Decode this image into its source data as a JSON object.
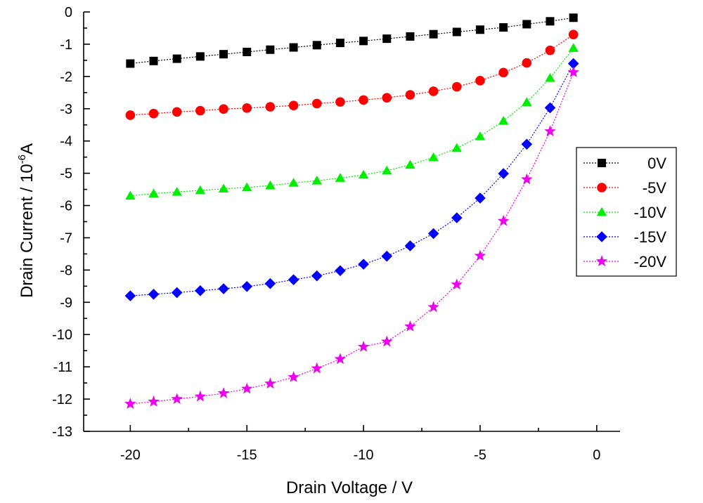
{
  "chart_data": {
    "type": "line",
    "xlabel": "Drain Voltage / V",
    "ylabel_main": "Drain Current / 10",
    "ylabel_exp": "-6",
    "ylabel_unit": "A",
    "xlim": [
      -22,
      1
    ],
    "ylim": [
      -13,
      0
    ],
    "xticks": [
      -20,
      -15,
      -10,
      -5,
      0
    ],
    "yticks": [
      0,
      -1,
      -2,
      -3,
      -4,
      -5,
      -6,
      -7,
      -8,
      -9,
      -10,
      -11,
      -12,
      -13
    ],
    "x": [
      -20,
      -19,
      -18,
      -17,
      -16,
      -15,
      -14,
      -13,
      -12,
      -11,
      -10,
      -9,
      -8,
      -7,
      -6,
      -5,
      -4,
      -3,
      -2,
      -1
    ],
    "legend_position": "right",
    "grid": false,
    "series": [
      {
        "name": "0V",
        "marker": "square",
        "color": "#000000",
        "values": [
          -1.6,
          -1.52,
          -1.45,
          -1.38,
          -1.31,
          -1.24,
          -1.17,
          -1.1,
          -1.03,
          -0.96,
          -0.9,
          -0.83,
          -0.76,
          -0.69,
          -0.62,
          -0.55,
          -0.48,
          -0.38,
          -0.29,
          -0.18
        ]
      },
      {
        "name": "-5V",
        "marker": "circle",
        "color": "#ff0000",
        "values": [
          -3.2,
          -3.15,
          -3.1,
          -3.06,
          -3.01,
          -2.98,
          -2.94,
          -2.9,
          -2.84,
          -2.79,
          -2.73,
          -2.66,
          -2.57,
          -2.46,
          -2.32,
          -2.13,
          -1.88,
          -1.58,
          -1.19,
          -0.7
        ]
      },
      {
        "name": "-10V",
        "marker": "triangle",
        "color": "#00ee00",
        "values": [
          -5.7,
          -5.63,
          -5.58,
          -5.53,
          -5.48,
          -5.44,
          -5.38,
          -5.3,
          -5.23,
          -5.15,
          -5.05,
          -4.92,
          -4.74,
          -4.51,
          -4.22,
          -3.86,
          -3.38,
          -2.8,
          -2.05,
          -1.12
        ]
      },
      {
        "name": "-15V",
        "marker": "diamond",
        "color": "#0000ff",
        "values": [
          -8.8,
          -8.75,
          -8.7,
          -8.64,
          -8.58,
          -8.51,
          -8.42,
          -8.3,
          -8.18,
          -8.02,
          -7.82,
          -7.57,
          -7.25,
          -6.87,
          -6.38,
          -5.77,
          -5.01,
          -4.1,
          -2.97,
          -1.6
        ]
      },
      {
        "name": "-20V",
        "marker": "star",
        "color": "#ee00ee",
        "values": [
          -12.15,
          -12.08,
          -12.0,
          -11.92,
          -11.82,
          -11.68,
          -11.52,
          -11.32,
          -11.05,
          -10.76,
          -10.38,
          -10.22,
          -9.75,
          -9.15,
          -8.45,
          -7.56,
          -6.48,
          -5.19,
          -3.7,
          -1.87
        ]
      }
    ]
  }
}
